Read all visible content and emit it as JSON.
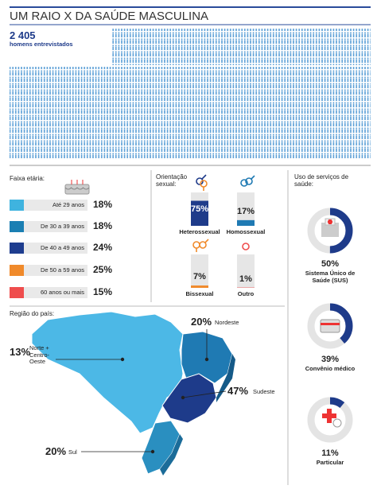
{
  "header": {
    "title": "UM RAIO X DA SAÚDE MASCULINA",
    "count": "2 405",
    "count_label": "homens entrevistados"
  },
  "age": {
    "title": "Faixa etária:",
    "rows": [
      {
        "label": "Até 29 anos",
        "value": "18%"
      },
      {
        "label": "De 30 a 39 anos",
        "value": "18%"
      },
      {
        "label": "De 40 a 49 anos",
        "value": "24%"
      },
      {
        "label": "De 50 a 59 anos",
        "value": "25%"
      },
      {
        "label": "60 anos ou mais",
        "value": "15%"
      }
    ]
  },
  "orientation": {
    "title": "Orientação sexual:",
    "items": [
      {
        "name": "Heterossexual",
        "value": 75,
        "label": "75%"
      },
      {
        "name": "Homossexual",
        "value": 17,
        "label": "17%"
      },
      {
        "name": "Bissexual",
        "value": 7,
        "label": "7%"
      },
      {
        "name": "Outro",
        "value": 1,
        "label": "1%"
      }
    ]
  },
  "services": {
    "title": "Uso de serviços de saúde:",
    "items": [
      {
        "name": "Sistema Único de Saúde (SUS)",
        "value": 50,
        "label": "50%"
      },
      {
        "name": "Convênio médico",
        "value": 39,
        "label": "39%"
      },
      {
        "name": "Particular",
        "value": 11,
        "label": "11%"
      }
    ]
  },
  "regions": {
    "title": "Região do país:",
    "items": [
      {
        "name": "Nordeste",
        "value": "20%"
      },
      {
        "name": "Sudeste",
        "value": "47%"
      },
      {
        "name": "Norte + Centro-Oeste",
        "value": "13%"
      },
      {
        "name": "Sul",
        "value": "20%"
      }
    ]
  }
}
